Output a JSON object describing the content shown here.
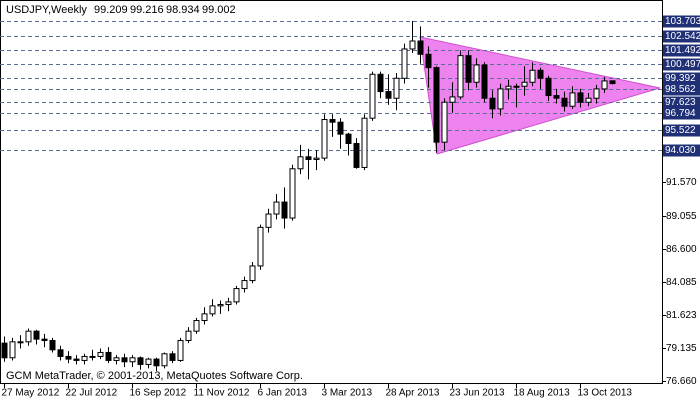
{
  "chart_data": {
    "type": "candlestick",
    "symbol": "USDJPY,Weekly",
    "footer": "GCM MetaTrader, © 2001-2013, MetaQuotes Software Corp.",
    "categories": [
      "27 May 2012",
      null,
      null,
      null,
      null,
      null,
      null,
      null,
      "22 Jul 2012",
      null,
      null,
      null,
      null,
      null,
      null,
      null,
      "16 Sep 2012",
      null,
      null,
      null,
      null,
      null,
      null,
      null,
      "11 Nov 2012",
      null,
      null,
      null,
      null,
      null,
      null,
      null,
      "6 Jan 2013",
      null,
      null,
      null,
      null,
      null,
      null,
      null,
      "3 Mar 2013",
      null,
      null,
      null,
      null,
      null,
      null,
      null,
      "28 Apr 2013",
      null,
      null,
      null,
      null,
      null,
      null,
      null,
      "23 Jun 2013",
      null,
      null,
      null,
      null,
      null,
      null,
      null,
      "18 Aug 2013",
      null,
      null,
      null,
      null,
      null,
      null,
      null,
      "13 Oct 2013",
      null,
      null,
      null,
      null
    ],
    "open": [
      79.5,
      78.4,
      79.6,
      79.6,
      80.4,
      79.8,
      79.7,
      79.0,
      78.5,
      78.3,
      78.2,
      78.5,
      78.5,
      78.8,
      78.2,
      78.4,
      78.1,
      78.4,
      77.9,
      78.3,
      77.8,
      78.7,
      78.2,
      79.7,
      80.4,
      81.2,
      81.7,
      82.3,
      82.4,
      82.6,
      83.6,
      84.2,
      85.3,
      88.2,
      89.2,
      90.1,
      88.9,
      92.6,
      93.5,
      93.3,
      93.4,
      96.3,
      96.1,
      95.2,
      94.5,
      92.7,
      96.4,
      99.7,
      98.4,
      97.9,
      99.4,
      101.6,
      102.2,
      101.2,
      100.2,
      94.6,
      97.6,
      98.0,
      101.1,
      99.1,
      100.4,
      97.9,
      97.1,
      98.6,
      98.8,
      98.8,
      99.1,
      100.0,
      99.4,
      98.1,
      97.9,
      97.3,
      98.3,
      97.6,
      97.9,
      98.6,
      99.209
    ],
    "high": [
      80.0,
      79.9,
      80.1,
      80.6,
      80.5,
      80.2,
      79.9,
      79.3,
      78.9,
      78.6,
      78.7,
      79.0,
      79.1,
      79.2,
      78.6,
      78.7,
      78.6,
      78.5,
      78.4,
      78.4,
      78.8,
      78.9,
      79.9,
      80.7,
      81.4,
      82.2,
      82.8,
      82.7,
      82.9,
      83.8,
      84.5,
      85.6,
      88.4,
      89.6,
      90.7,
      91.2,
      92.9,
      94.4,
      94.1,
      94.0,
      96.7,
      96.7,
      96.4,
      95.3,
      94.9,
      96.7,
      99.9,
      99.9,
      99.7,
      99.8,
      102.0,
      103.7,
      103.3,
      101.8,
      100.3,
      97.9,
      99.1,
      101.5,
      101.5,
      100.9,
      100.6,
      98.5,
      99.0,
      99.3,
      99.0,
      100.3,
      100.6,
      100.2,
      99.6,
      98.6,
      98.4,
      98.8,
      98.6,
      98.3,
      98.9,
      99.5,
      99.216
    ],
    "low": [
      78.1,
      78.2,
      79.1,
      79.3,
      79.4,
      79.2,
      78.8,
      78.2,
      78.0,
      77.9,
      77.9,
      78.2,
      78.3,
      78.0,
      77.9,
      77.7,
      77.7,
      77.5,
      77.6,
      77.4,
      77.6,
      78.0,
      78.1,
      79.5,
      80.2,
      80.9,
      81.5,
      81.7,
      81.9,
      82.4,
      83.3,
      84.0,
      85.0,
      87.8,
      88.8,
      88.1,
      88.7,
      92.2,
      91.8,
      92.5,
      93.2,
      95.0,
      94.1,
      93.6,
      92.6,
      92.5,
      96.2,
      97.9,
      97.4,
      97.0,
      99.0,
      101.3,
      100.5,
      98.7,
      93.8,
      94.0,
      96.8,
      97.8,
      98.5,
      98.7,
      97.6,
      96.4,
      96.6,
      97.8,
      97.2,
      98.1,
      98.8,
      98.6,
      97.7,
      97.5,
      96.9,
      97.1,
      97.2,
      97.3,
      97.5,
      98.3,
      98.934
    ],
    "close": [
      78.4,
      79.6,
      79.6,
      80.4,
      79.8,
      79.7,
      79.0,
      78.5,
      78.3,
      78.2,
      78.5,
      78.5,
      78.8,
      78.2,
      78.4,
      78.1,
      78.4,
      77.9,
      78.3,
      77.8,
      78.7,
      78.2,
      79.7,
      80.4,
      81.2,
      81.7,
      82.3,
      82.4,
      82.6,
      83.6,
      84.2,
      85.3,
      88.2,
      89.2,
      90.1,
      88.9,
      92.6,
      93.5,
      93.3,
      93.4,
      96.3,
      96.1,
      95.2,
      94.5,
      92.7,
      96.4,
      99.7,
      98.4,
      97.9,
      99.4,
      101.6,
      102.2,
      101.2,
      100.2,
      94.6,
      97.6,
      98.0,
      101.1,
      99.1,
      100.4,
      97.9,
      97.1,
      98.6,
      98.8,
      98.8,
      99.1,
      100.0,
      99.4,
      98.1,
      97.9,
      97.3,
      98.3,
      97.6,
      97.9,
      98.6,
      99.2,
      99.002
    ],
    "ylim": [
      76.43,
      105.28
    ],
    "yticks": [
      {
        "value": 91.57,
        "label": "91.570"
      },
      89.055,
      {
        "value": 86.6,
        "label": "86.600"
      },
      84.085,
      81.623,
      79.135,
      {
        "value": 76.66,
        "label": "76.660"
      }
    ],
    "levels": [
      103.703,
      102.542,
      101.492,
      100.497,
      99.392,
      98.562,
      97.623,
      96.794,
      95.522,
      {
        "value": 94.03,
        "label": "94.030"
      }
    ]
  }
}
